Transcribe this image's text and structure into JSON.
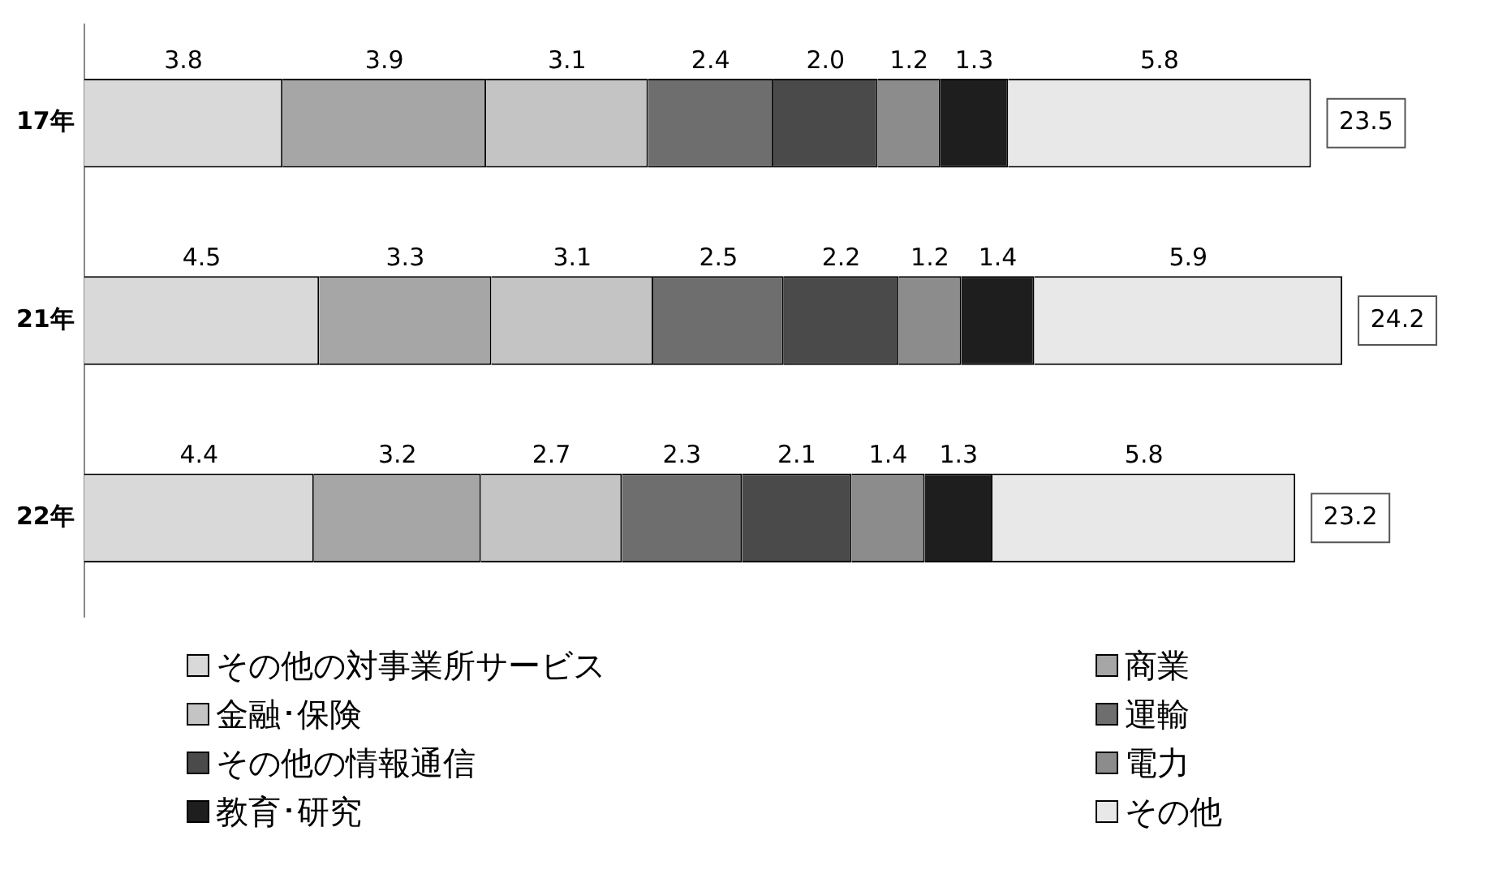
{
  "chart_data": {
    "type": "bar",
    "orientation": "horizontal",
    "stacked": true,
    "categories": [
      "17年",
      "21年",
      "22年"
    ],
    "series": [
      {
        "name": "その他の対事業所サービス",
        "color": "#d9d9d9",
        "values": [
          3.8,
          4.5,
          4.4
        ],
        "value_labels": [
          "3.8",
          "4.5",
          "4.4"
        ]
      },
      {
        "name": "商業",
        "color": "#a6a6a6",
        "values": [
          3.9,
          3.3,
          3.2
        ],
        "value_labels": [
          "3.9",
          "3.3",
          "3.2"
        ]
      },
      {
        "name": "金融･保険",
        "color": "#c4c4c4",
        "values": [
          3.1,
          3.1,
          2.7
        ],
        "value_labels": [
          "3.1",
          "3.1",
          "2.7"
        ]
      },
      {
        "name": "運輸",
        "color": "#6e6e6e",
        "values": [
          2.4,
          2.5,
          2.3
        ],
        "value_labels": [
          "2.4",
          "2.5",
          "2.3"
        ]
      },
      {
        "name": "その他の情報通信",
        "color": "#4a4a4a",
        "values": [
          2.0,
          2.2,
          2.1
        ],
        "value_labels": [
          "2.0",
          "2.2",
          "2.1"
        ]
      },
      {
        "name": "電力",
        "color": "#8c8c8c",
        "values": [
          1.2,
          1.2,
          1.4
        ],
        "value_labels": [
          "1.2",
          "1.2",
          "1.4"
        ]
      },
      {
        "name": "教育･研究",
        "color": "#1e1e1e",
        "values": [
          1.3,
          1.4,
          1.3
        ],
        "value_labels": [
          "1.3",
          "1.4",
          "1.3"
        ]
      },
      {
        "name": "その他",
        "color": "#e8e8e8",
        "values": [
          5.8,
          5.9,
          5.8
        ],
        "value_labels": [
          "5.8",
          "5.9",
          "5.8"
        ]
      }
    ],
    "tick_labels": "y",
    "grid": false,
    "legend": "bottom",
    "totals": [
      "23.5",
      "24.2",
      "23.2"
    ]
  }
}
